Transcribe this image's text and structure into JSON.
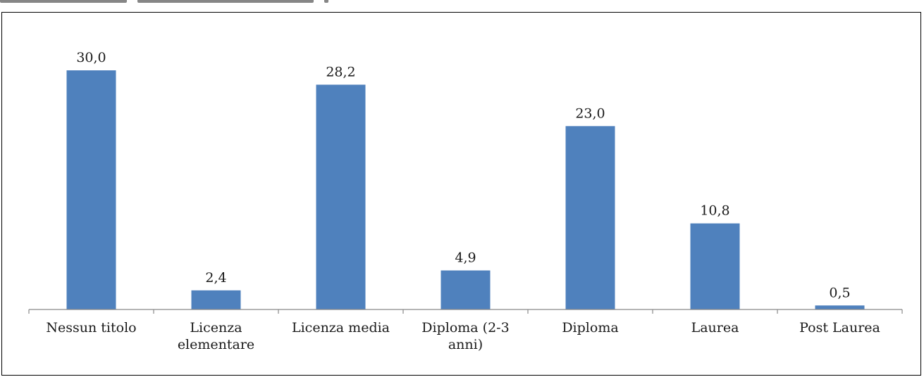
{
  "chart_data": {
    "type": "bar",
    "title": "",
    "xlabel": "",
    "ylabel": "",
    "categories": [
      [
        "Nessun titolo"
      ],
      [
        "Licenza",
        "elementare"
      ],
      [
        "Licenza media"
      ],
      [
        "Diploma (2-3",
        "anni)"
      ],
      [
        "Diploma"
      ],
      [
        "Laurea"
      ],
      [
        "Post Laurea"
      ]
    ],
    "values": [
      30.0,
      2.4,
      28.2,
      4.9,
      23.0,
      10.8,
      0.5
    ],
    "value_labels": [
      "30,0",
      "2,4",
      "28,2",
      "4,9",
      "23,0",
      "10,8",
      "0,5"
    ],
    "ylim": [
      0,
      30
    ],
    "y_axis_visible": false,
    "grid": false,
    "legend": "none",
    "bar_color": "#4f81bd",
    "axis_color": "#898989"
  }
}
